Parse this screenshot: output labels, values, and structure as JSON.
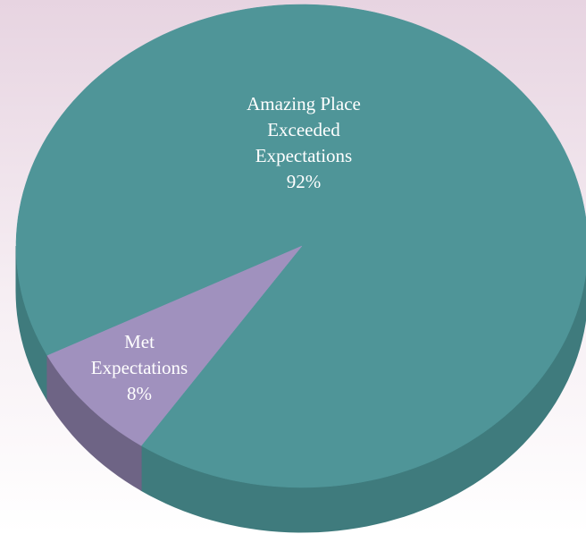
{
  "chart_data": {
    "type": "pie",
    "categories": [
      "Amazing Place Exceeded Expectations",
      "Met Expectations"
    ],
    "values": [
      92,
      8
    ],
    "value_labels": [
      "92%",
      "8%"
    ],
    "colors": [
      "#4f9598",
      "#a091be"
    ],
    "side_colors": [
      "#3f7b7d",
      "#6e6485"
    ]
  }
}
